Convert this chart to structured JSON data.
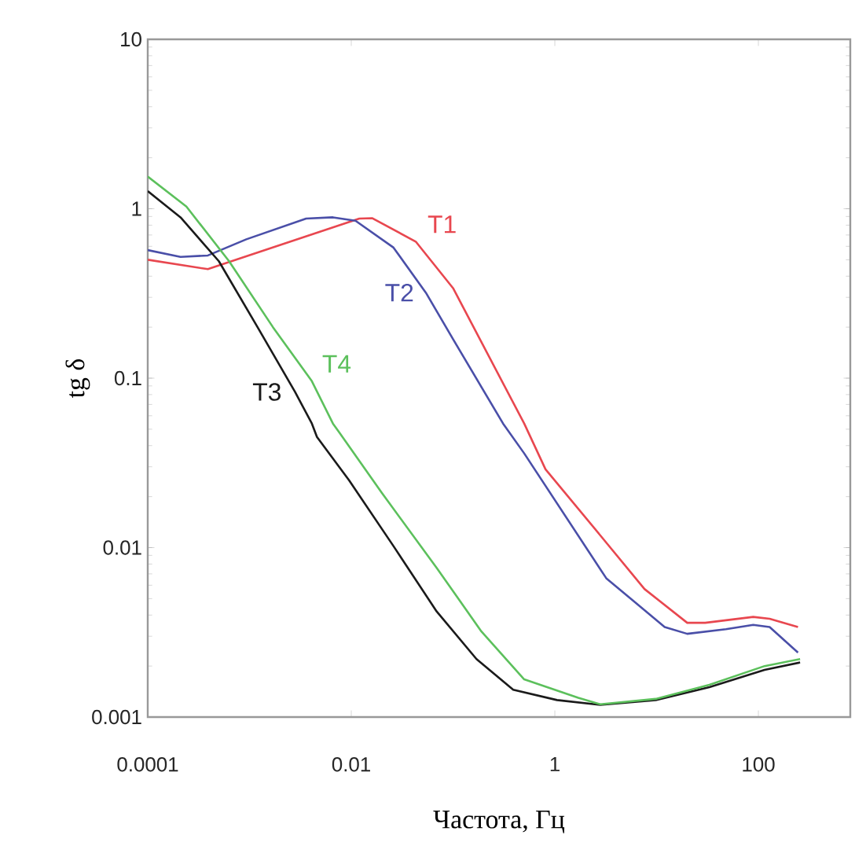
{
  "chart_data": {
    "type": "line",
    "xlabel": "Частота, Гц",
    "ylabel": "tg δ",
    "log": "xy",
    "legend": false,
    "grid": false,
    "marker": "none",
    "line_style": "solid",
    "xlim": [
      0.0001,
      800
    ],
    "ylim": [
      0.001,
      10
    ],
    "xticks": [
      0.0001,
      0.01,
      1,
      100
    ],
    "yticks": [
      0.001,
      0.01,
      0.1,
      1,
      10
    ],
    "series": [
      {
        "name": "T1",
        "color": "#e8474f",
        "x": [
          0.0001,
          0.00039,
          0.012,
          0.016,
          0.043,
          0.1,
          0.5,
          0.81,
          2.8,
          7.6,
          20,
          30,
          89,
          129,
          245
        ],
        "values": [
          0.5,
          0.44,
          0.875,
          0.88,
          0.64,
          0.34,
          0.054,
          0.029,
          0.0118,
          0.0057,
          0.0036,
          0.0036,
          0.0039,
          0.0038,
          0.0034
        ]
      },
      {
        "name": "T2",
        "color": "#4a4fa8",
        "x": [
          0.0001,
          0.00021,
          0.00039,
          0.00093,
          0.0036,
          0.0066,
          0.011,
          0.026,
          0.054,
          0.1,
          0.31,
          0.5,
          3.2,
          12,
          20,
          48,
          89,
          129,
          245
        ],
        "values": [
          0.57,
          0.52,
          0.53,
          0.66,
          0.875,
          0.89,
          0.85,
          0.59,
          0.32,
          0.17,
          0.054,
          0.036,
          0.0066,
          0.0034,
          0.0031,
          0.0033,
          0.0035,
          0.0034,
          0.0024
        ]
      },
      {
        "name": "T3",
        "color": "#1a1a1a",
        "x": [
          0.0001,
          0.00021,
          0.0005,
          0.0012,
          0.0028,
          0.0041,
          0.0046,
          0.0095,
          0.026,
          0.069,
          0.17,
          0.39,
          1.05,
          2.8,
          9.8,
          33,
          115,
          257
        ],
        "values": [
          1.27,
          0.89,
          0.49,
          0.2,
          0.083,
          0.054,
          0.045,
          0.025,
          0.0102,
          0.0042,
          0.0022,
          0.00145,
          0.00126,
          0.00118,
          0.00126,
          0.0015,
          0.0019,
          0.0021
        ]
      },
      {
        "name": "T4",
        "color": "#5cc05c",
        "x": [
          0.0001,
          0.00024,
          0.00063,
          0.0017,
          0.0041,
          0.0066,
          0.0076,
          0.02,
          0.069,
          0.19,
          0.5,
          1.7,
          2.8,
          9.8,
          33,
          115,
          257
        ],
        "values": [
          1.55,
          1.03,
          0.49,
          0.2,
          0.096,
          0.054,
          0.048,
          0.021,
          0.0076,
          0.0032,
          0.00167,
          0.0013,
          0.00119,
          0.00128,
          0.00155,
          0.002,
          0.0022
        ]
      }
    ]
  }
}
